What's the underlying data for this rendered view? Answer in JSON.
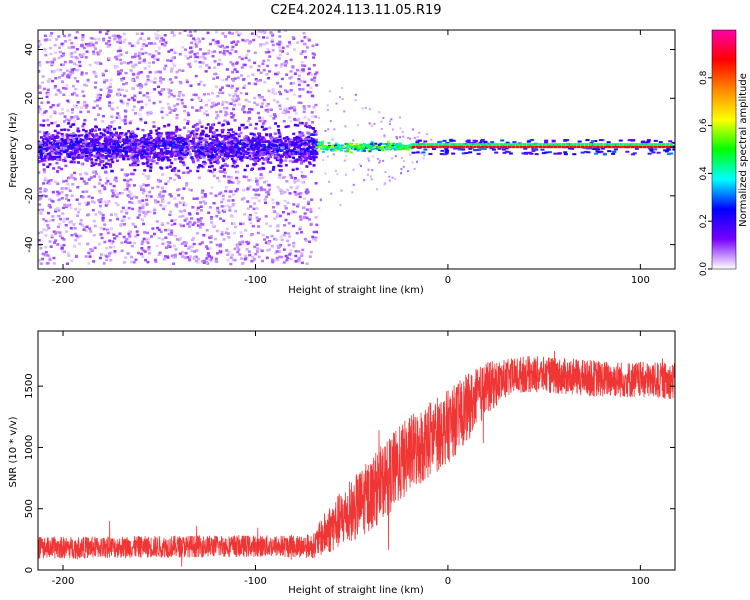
{
  "title": "C2E4.2024.113.11.05.R19",
  "chart_data": [
    {
      "type": "heatmap",
      "xlabel": "Height of straight line (km)",
      "ylabel": "Frequency (Hz)",
      "xlim": [
        -213,
        118
      ],
      "ylim": [
        -50,
        48
      ],
      "xticks": [
        -200,
        -100,
        0,
        100
      ],
      "yticks": [
        -40,
        -20,
        0,
        20,
        40
      ],
      "colorbar": {
        "label": "Normalized spectral amplitude",
        "range": [
          0,
          1
        ],
        "ticks": [
          "0.0",
          "0.2",
          "0.4",
          "0.6",
          "0.8"
        ],
        "tick_values": [
          0,
          0.2,
          0.4,
          0.6,
          0.8
        ],
        "stops": [
          "#ffffff",
          "#7700ff",
          "#0000ff",
          "#00ffff",
          "#00ff00",
          "#ffff00",
          "#ff8800",
          "#ff0000",
          "#ff00aa"
        ]
      },
      "regions": [
        {
          "x": [
            -213,
            -68
          ],
          "freq_spread": 48,
          "amplitude": [
            0.05,
            0.3
          ]
        },
        {
          "x": [
            -68,
            -18
          ],
          "freq_spread": 4,
          "amplitude": [
            0.4,
            0.6
          ]
        },
        {
          "x": [
            -18,
            118
          ],
          "freq_spread": 2,
          "amplitude": [
            0.85,
            0.9
          ]
        }
      ]
    },
    {
      "type": "line",
      "xlabel": "Height of straight line (km)",
      "ylabel": "SNR (10 * v/v)",
      "xlim": [
        -213,
        118
      ],
      "ylim": [
        0,
        1950
      ],
      "xticks": [
        -200,
        -100,
        0,
        100
      ],
      "yticks": [
        0,
        500,
        1000,
        1500
      ],
      "color": "#f03535",
      "series": [
        {
          "x": [
            -213,
            -180,
            -150,
            -120,
            -90,
            -70,
            -62,
            -50,
            -40,
            -30,
            -20,
            -10,
            0,
            10,
            20,
            30,
            40,
            60,
            80,
            100,
            118
          ],
          "y": [
            180,
            185,
            190,
            195,
            195,
            195,
            330,
            480,
            620,
            780,
            940,
            1060,
            1170,
            1320,
            1480,
            1560,
            1600,
            1580,
            1560,
            1550,
            1540
          ],
          "spread": [
            90,
            90,
            90,
            90,
            90,
            100,
            200,
            260,
            300,
            320,
            320,
            320,
            300,
            280,
            220,
            160,
            150,
            150,
            150,
            150,
            150
          ]
        }
      ]
    }
  ]
}
